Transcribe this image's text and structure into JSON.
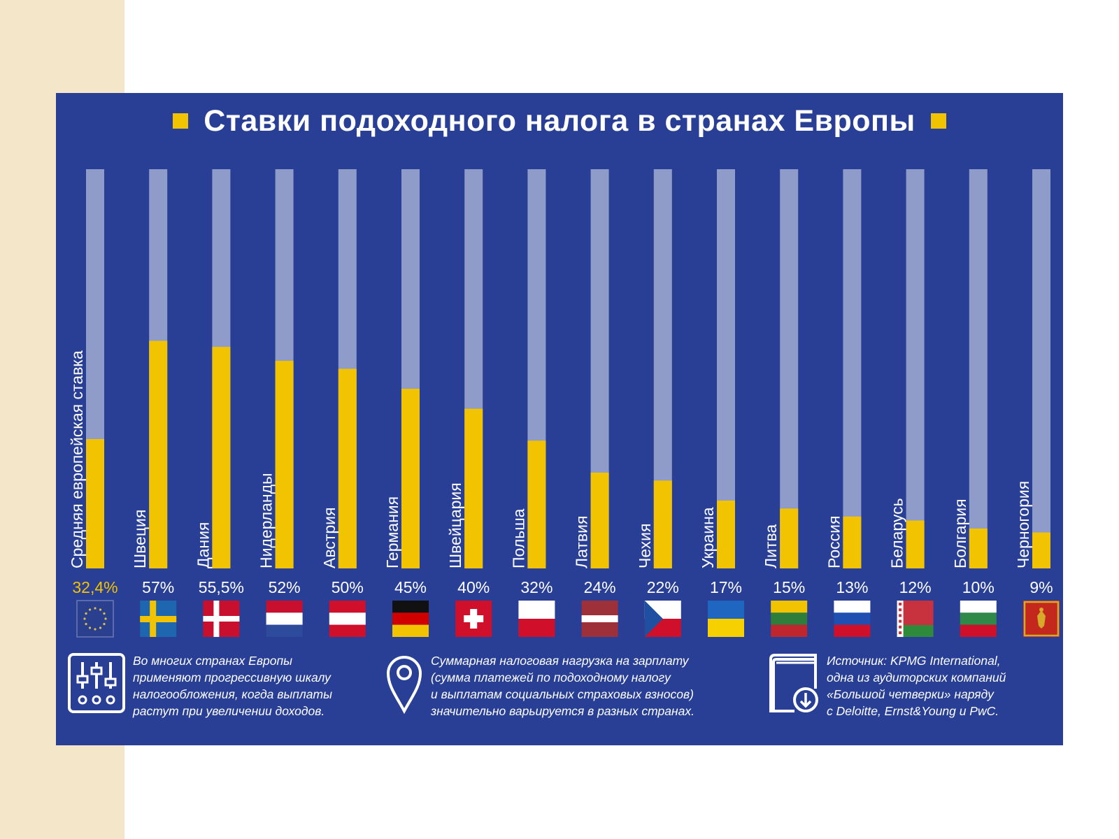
{
  "title": "Ставки подоходного налога в странах Европы",
  "colors": {
    "panel": "#283f95",
    "bar_track": "#8f9bc9",
    "bar_fill": "#f2c300",
    "text": "#ffffff",
    "highlight_value": "#f2c300"
  },
  "chart_data": {
    "type": "bar",
    "orientation": "vertical",
    "ylim": [
      0,
      100
    ],
    "categories": [
      "Средняя европейская ставка",
      "Швеция",
      "Дания",
      "Нидерланды",
      "Австрия",
      "Германия",
      "Швейцария",
      "Польша",
      "Латвия",
      "Чехия",
      "Украина",
      "Литва",
      "Россия",
      "Беларусь",
      "Болгария",
      "Черногория"
    ],
    "values": [
      32.4,
      57,
      55.5,
      52,
      50,
      45,
      40,
      32,
      24,
      22,
      17,
      15,
      13,
      12,
      10,
      9
    ],
    "value_labels": [
      "32,4%",
      "57%",
      "55,5%",
      "52%",
      "50%",
      "45%",
      "40%",
      "32%",
      "24%",
      "22%",
      "17%",
      "15%",
      "13%",
      "12%",
      "10%",
      "9%"
    ],
    "flags": [
      "eu-flag-icon",
      "sweden-flag-icon",
      "denmark-flag-icon",
      "netherlands-flag-icon",
      "austria-flag-icon",
      "germany-flag-icon",
      "switzerland-flag-icon",
      "poland-flag-icon",
      "latvia-flag-icon",
      "czechia-flag-icon",
      "ukraine-flag-icon",
      "lithuania-flag-icon",
      "russia-flag-icon",
      "belarus-flag-icon",
      "bulgaria-flag-icon",
      "montenegro-flag-icon"
    ]
  },
  "footer": {
    "left": {
      "icon": "sliders-icon",
      "text": "Во многих странах Европы\nприменяют прогрессивную шкалу\nналогообложения, когда выплаты\nрастут при увеличении доходов."
    },
    "middle": {
      "icon": "map-pin-icon",
      "text": "Суммарная налоговая нагрузка на зарплату\n(сумма платежей по подоходному налогу\nи выплатам социальных страховых взносов)\nзначительно варьируется в разных странах."
    },
    "right": {
      "icon": "book-download-icon",
      "text": "Источник: KPMG International,\nодна из аудиторских компаний\n«Большой четверки» наряду\nс Deloitte, Ernst&Young и PwC."
    }
  }
}
